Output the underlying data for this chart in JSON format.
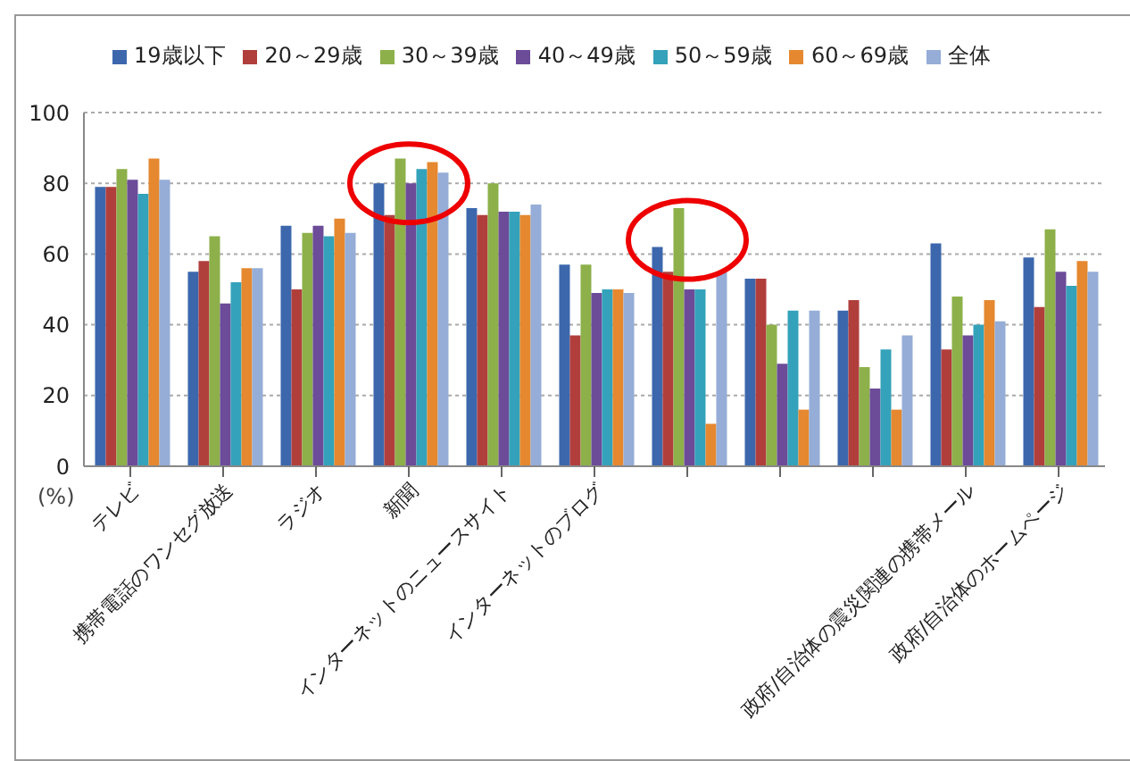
{
  "chart_data": {
    "type": "bar",
    "ylabel": "(%)",
    "categories": [
      "テレビ",
      "携帯電話のワンセグ放送",
      "ラジオ",
      "新聞",
      "インターネットのニュースサイト",
      "インターネットのブログ",
      null,
      null,
      null,
      "政府/自治体の震災関連の携帯メール",
      "政府/自治体のホームページ"
    ],
    "series": [
      {
        "name": "19歳以下",
        "color": "#3c67ad",
        "values": [
          79,
          55,
          68,
          80,
          73,
          57,
          62,
          53,
          44,
          63,
          59
        ]
      },
      {
        "name": "20～29歳",
        "color": "#b03f3c",
        "values": [
          79,
          58,
          50,
          71,
          71,
          37,
          55,
          53,
          47,
          33,
          45
        ]
      },
      {
        "name": "30～39歳",
        "color": "#8db04a",
        "values": [
          84,
          65,
          66,
          87,
          80,
          57,
          73,
          40,
          28,
          48,
          67
        ]
      },
      {
        "name": "40～49歳",
        "color": "#6c4b99",
        "values": [
          81,
          46,
          68,
          80,
          72,
          49,
          50,
          29,
          22,
          37,
          55
        ]
      },
      {
        "name": "50～59歳",
        "color": "#34a2ba",
        "values": [
          77,
          52,
          65,
          84,
          72,
          50,
          50,
          44,
          33,
          40,
          51
        ]
      },
      {
        "name": "60～69歳",
        "color": "#e5882f",
        "values": [
          87,
          56,
          70,
          86,
          71,
          50,
          12,
          16,
          16,
          47,
          58
        ]
      },
      {
        "name": "全体",
        "color": "#95add7",
        "values": [
          81,
          56,
          66,
          83,
          74,
          49,
          55,
          44,
          37,
          41,
          55
        ]
      }
    ],
    "ylim": [
      0,
      100
    ],
    "yticks": [
      0,
      20,
      40,
      60,
      80,
      100
    ],
    "grid": "y",
    "legend": "top"
  }
}
